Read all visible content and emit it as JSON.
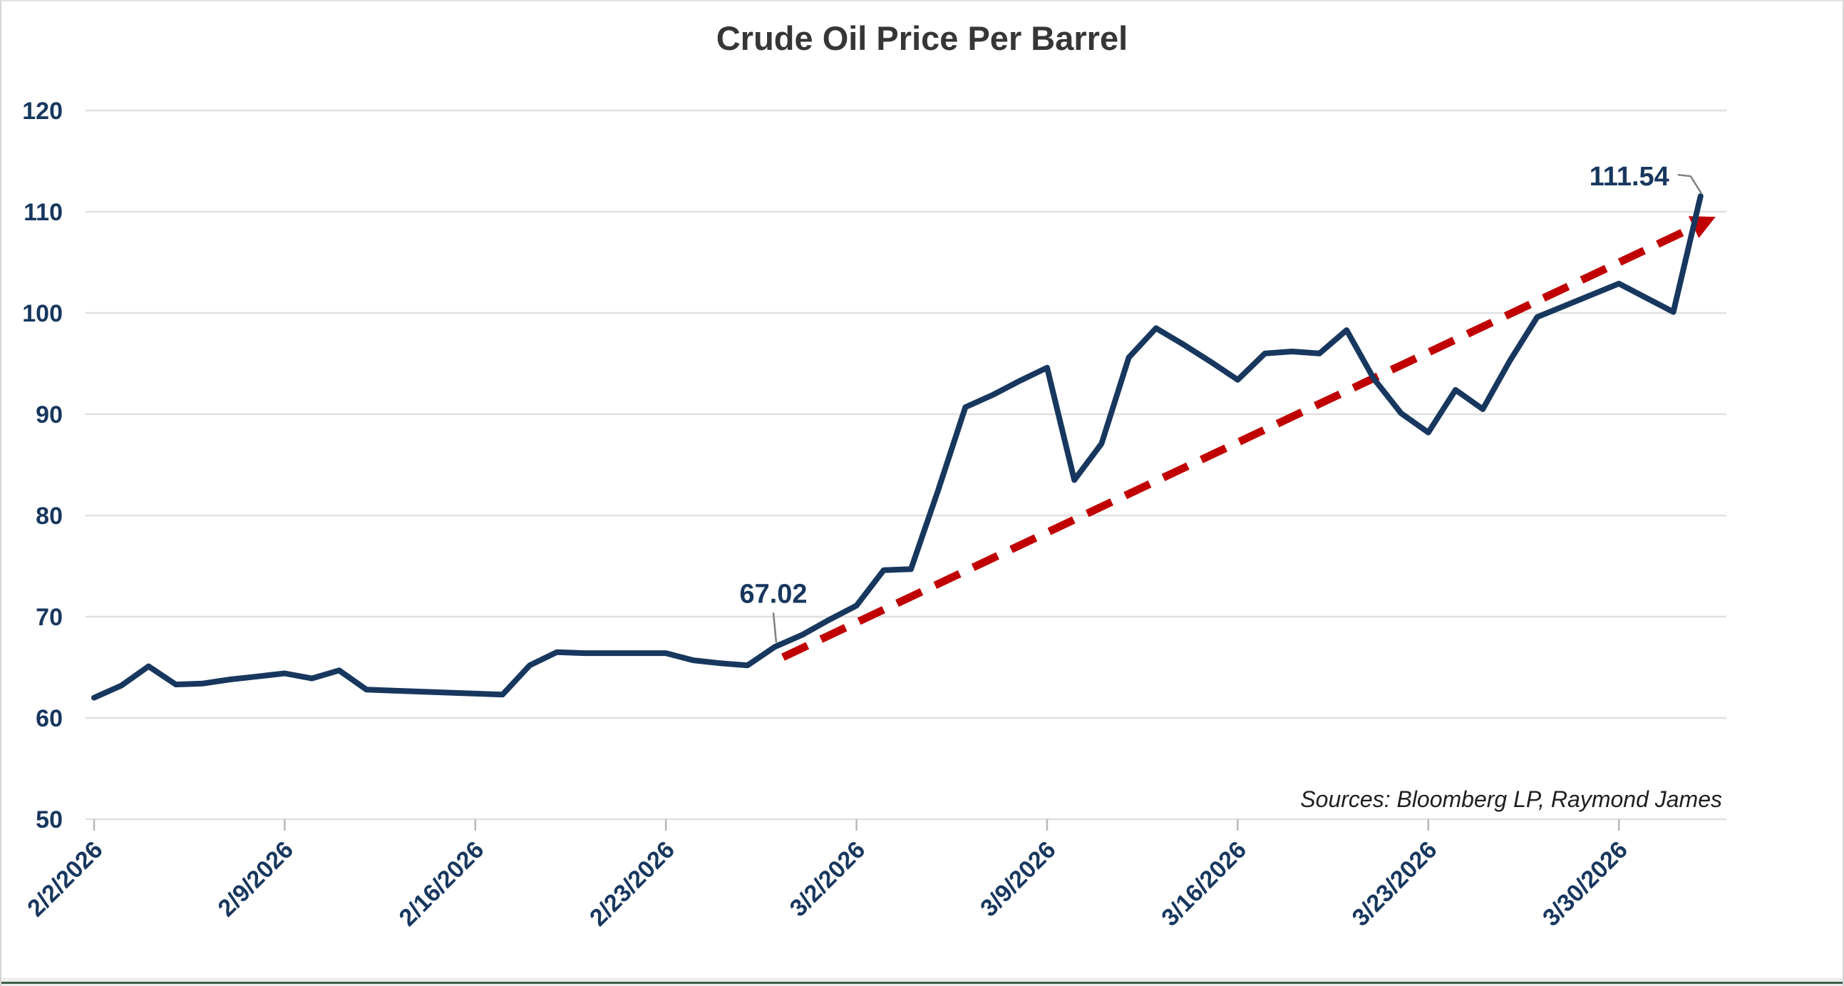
{
  "title": "Crude Oil Price Per Barrel",
  "sources_note": "Sources: Bloomberg LP, Raymond James",
  "colors": {
    "series_line": "#17375e",
    "trend_line": "#c00000",
    "axis_label": "#17375e",
    "gridline": "#e0e0e0",
    "tick_mark": "#b8b8b8",
    "title_text": "#363636",
    "sources_text": "#1f1f1f",
    "leader_line": "#808080",
    "bottom_strip": "#3d6249"
  },
  "chart_data": {
    "type": "line",
    "title": "Crude Oil Price Per Barrel",
    "xlabel": "",
    "ylabel": "",
    "ylim": [
      50,
      120
    ],
    "grid": "horizontal",
    "legend": "none",
    "x": [
      "2/2/2026",
      "2/3/2026",
      "2/4/2026",
      "2/5/2026",
      "2/6/2026",
      "2/7/2026",
      "2/8/2026",
      "2/9/2026",
      "2/10/2026",
      "2/11/2026",
      "2/12/2026",
      "2/13/2026",
      "2/14/2026",
      "2/15/2026",
      "2/16/2026",
      "2/17/2026",
      "2/18/2026",
      "2/19/2026",
      "2/20/2026",
      "2/21/2026",
      "2/22/2026",
      "2/23/2026",
      "2/24/2026",
      "2/25/2026",
      "2/26/2026",
      "2/27/2026",
      "2/28/2026",
      "3/1/2026",
      "3/2/2026",
      "3/3/2026",
      "3/4/2026",
      "3/5/2026",
      "3/6/2026",
      "3/7/2026",
      "3/8/2026",
      "3/9/2026",
      "3/10/2026",
      "3/11/2026",
      "3/12/2026",
      "3/13/2026",
      "3/14/2026",
      "3/15/2026",
      "3/16/2026",
      "3/17/2026",
      "3/18/2026",
      "3/19/2026",
      "3/20/2026",
      "3/21/2026",
      "3/22/2026",
      "3/23/2026",
      "3/24/2026",
      "3/25/2026",
      "3/26/2026",
      "3/27/2026",
      "3/28/2026",
      "3/29/2026",
      "3/30/2026",
      "3/31/2026",
      "4/1/2026",
      "4/2/2026"
    ],
    "series": [
      {
        "name": "Crude Oil Price Per Barrel",
        "values": [
          62.0,
          63.2,
          65.1,
          63.3,
          63.4,
          63.8,
          64.1,
          64.4,
          63.9,
          64.7,
          62.8,
          62.7,
          62.6,
          62.5,
          62.4,
          62.3,
          65.2,
          66.5,
          66.4,
          66.4,
          66.4,
          66.4,
          65.7,
          65.4,
          65.2,
          67.02,
          68.2,
          69.7,
          71.1,
          74.6,
          74.7,
          82.5,
          90.7,
          91.9,
          93.3,
          94.6,
          83.5,
          87.1,
          95.6,
          98.5,
          96.9,
          95.2,
          93.4,
          96.0,
          96.2,
          96.0,
          98.3,
          93.5,
          90.1,
          88.2,
          92.4,
          90.5,
          95.3,
          99.6,
          100.7,
          101.8,
          102.9,
          101.5,
          100.1,
          111.54
        ]
      }
    ],
    "trend": {
      "style": "dashed-arrow",
      "from": {
        "day_index": 25.3,
        "value": 66.0
      },
      "to": {
        "day_index": 59.55,
        "value": 109.5
      }
    },
    "annotations": [
      {
        "label": "67.02",
        "day_index": 25,
        "value": 67.02
      },
      {
        "label": "111.54",
        "day_index": 59,
        "value": 111.54
      }
    ],
    "y_ticks": [
      50,
      60,
      70,
      80,
      90,
      100,
      110,
      120
    ],
    "x_tick_labels": [
      "2/2/2026",
      "2/9/2026",
      "2/16/2026",
      "2/23/2026",
      "3/2/2026",
      "3/9/2026",
      "3/16/2026",
      "3/23/2026",
      "3/30/2026"
    ],
    "x_tick_indices": [
      0,
      7,
      14,
      21,
      28,
      35,
      42,
      49,
      56
    ]
  }
}
